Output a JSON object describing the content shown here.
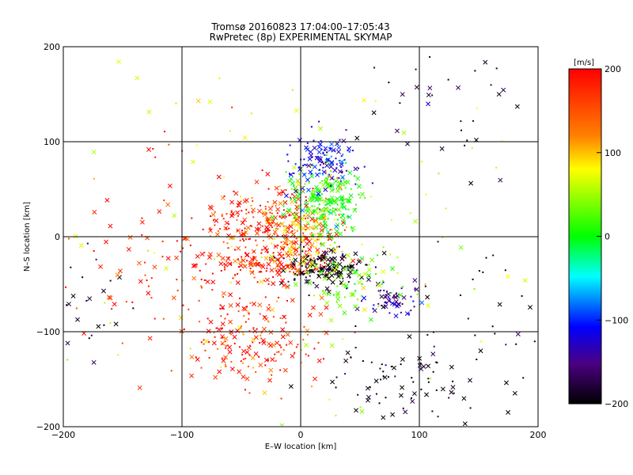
{
  "chart_data": {
    "type": "scatter",
    "title": "Tromsø 20160823 17:04:00–17:05:43",
    "subtitle": "RwPretec (8p) EXPERIMENTAL SKYMAP",
    "xlabel": "E–W location [km]",
    "ylabel": "N–S location [km]",
    "xlim": [
      -200,
      200
    ],
    "ylim": [
      -200,
      200
    ],
    "xticks": [
      -200,
      -100,
      0,
      100,
      200
    ],
    "yticks": [
      -200,
      -100,
      0,
      100,
      200
    ],
    "grid": true,
    "colorbar": {
      "label": "[m/s]",
      "min": -200,
      "max": 200,
      "ticks": [
        200,
        100,
        0,
        -100,
        -200
      ],
      "colors": [
        "#ff0000",
        "#ff8000",
        "#ffff00",
        "#00ff00",
        "#00ffff",
        "#0000ff",
        "#4b0082",
        "#000000"
      ]
    },
    "marker_types": [
      "cross",
      "dot"
    ],
    "clusters": [
      {
        "x": -30,
        "y": 12,
        "sx": 30,
        "sy": 18,
        "v": 185,
        "n": 260
      },
      {
        "x": -25,
        "y": -28,
        "sx": 28,
        "sy": 10,
        "v": 190,
        "n": 160
      },
      {
        "x": 20,
        "y": -32,
        "sx": 18,
        "sy": 10,
        "v": -200,
        "n": 150
      },
      {
        "x": 20,
        "y": 35,
        "sx": 16,
        "sy": 18,
        "v": 10,
        "n": 230
      },
      {
        "x": 22,
        "y": 78,
        "sx": 16,
        "sy": 14,
        "v": -110,
        "n": 120
      },
      {
        "x": -40,
        "y": -105,
        "sx": 30,
        "sy": 28,
        "v": 185,
        "n": 200
      },
      {
        "x": 75,
        "y": -68,
        "sx": 12,
        "sy": 8,
        "v": -140,
        "n": 60
      },
      {
        "x": 90,
        "y": -150,
        "sx": 35,
        "sy": 25,
        "v": -195,
        "n": 80
      },
      {
        "x": 0,
        "y": 5,
        "sx": 15,
        "sy": 30,
        "v": 120,
        "n": 100
      },
      {
        "x": 40,
        "y": -40,
        "sx": 25,
        "sy": 20,
        "v": 30,
        "n": 80
      },
      {
        "x": 140,
        "y": 140,
        "sx": 40,
        "sy": 40,
        "v": -190,
        "n": 40
      },
      {
        "x": 170,
        "y": -100,
        "sx": 30,
        "sy": 60,
        "v": -200,
        "n": 30
      },
      {
        "x": -180,
        "y": -70,
        "sx": 20,
        "sy": 25,
        "v": -200,
        "n": 25
      },
      {
        "x": -130,
        "y": -20,
        "sx": 40,
        "sy": 60,
        "v": 190,
        "n": 80
      },
      {
        "x": 0,
        "y": 0,
        "sx": 120,
        "sy": 120,
        "v": 80,
        "n": 120
      }
    ]
  }
}
